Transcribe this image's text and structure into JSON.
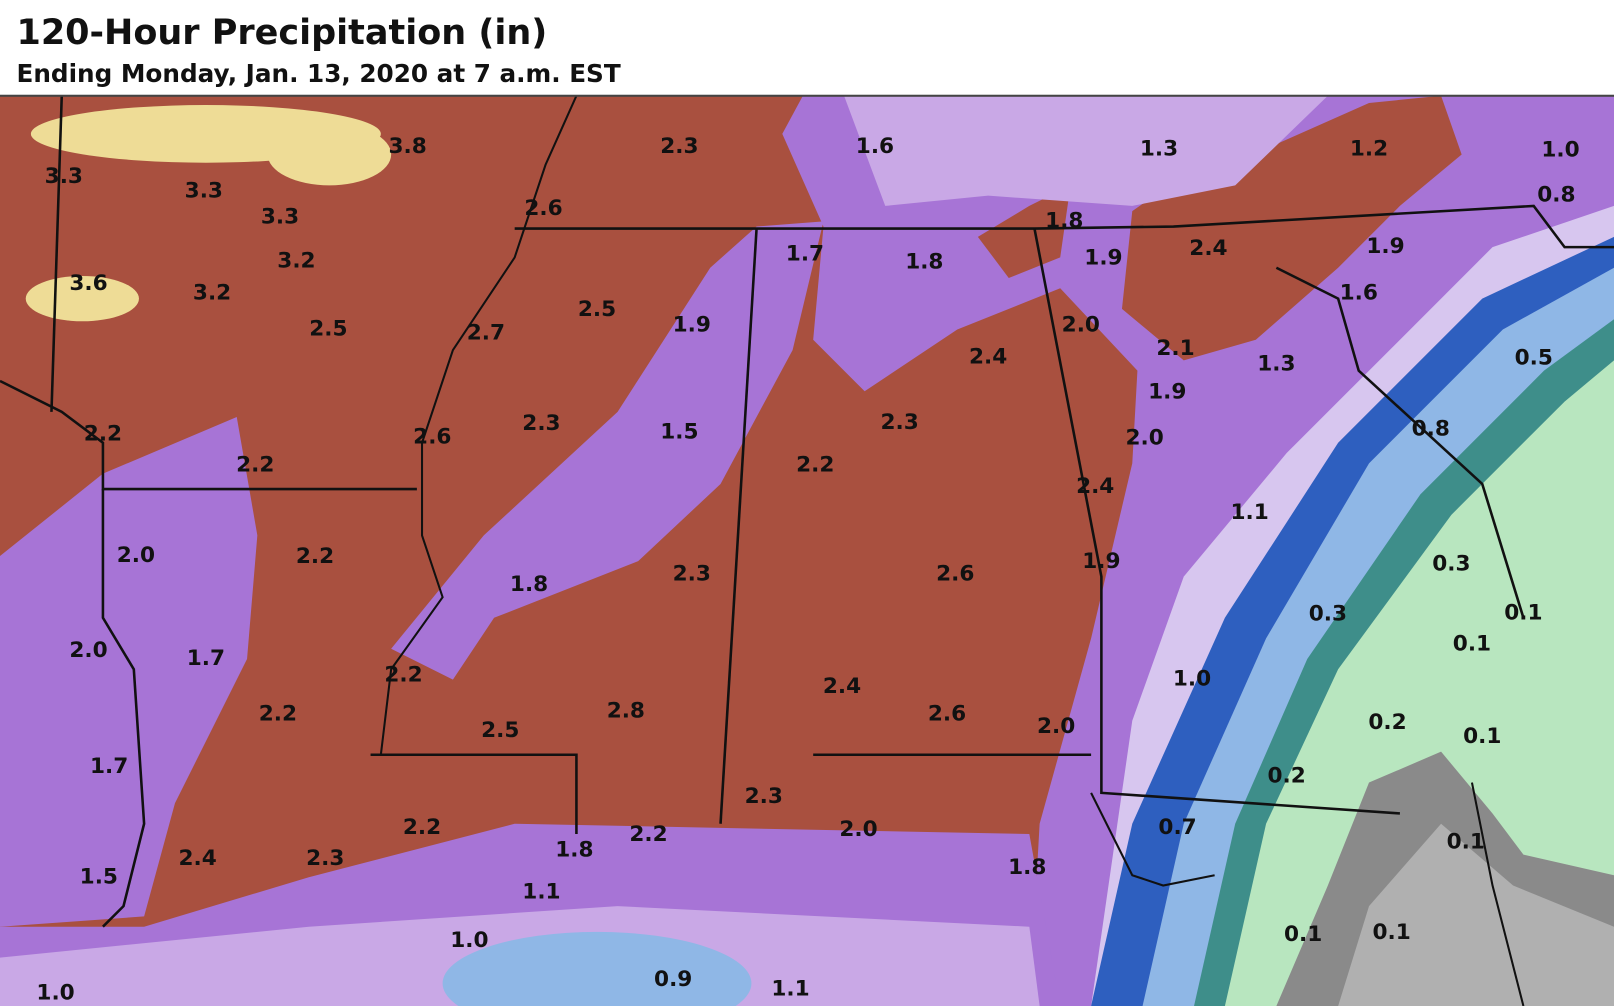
{
  "header": {
    "title": "120-Hour Precipitation (in)",
    "subtitle": "Ending Monday, Jan. 13, 2020 at 7 a.m. EST"
  },
  "map": {
    "labels": [
      "3.3",
      "3.8",
      "3.3",
      "3.3",
      "3.2",
      "3.6",
      "3.2",
      "2.5",
      "2.7",
      "2.6",
      "2.3",
      "2.5",
      "1.9",
      "2.3",
      "2.6",
      "2.2",
      "2.2",
      "1.5",
      "2.0",
      "2.2",
      "1.8",
      "2.3",
      "2.0",
      "1.7",
      "2.2",
      "2.2",
      "2.5",
      "2.8",
      "1.7",
      "2.2",
      "2.2",
      "1.8",
      "2.4",
      "2.3",
      "1.5",
      "1.1",
      "1.0",
      "0.9",
      "1.1",
      "1.0",
      "2.3",
      "2.0",
      "1.8",
      "2.4",
      "2.6",
      "2.0",
      "2.6",
      "2.2",
      "2.3",
      "2.4",
      "1.7",
      "1.8",
      "1.6",
      "1.3",
      "1.8",
      "1.9",
      "2.4",
      "2.0",
      "2.1",
      "1.9",
      "2.0",
      "2.4",
      "1.9",
      "1.3",
      "1.2",
      "1.0",
      "0.8",
      "1.9",
      "1.6",
      "0.5",
      "0.8",
      "1.1",
      "0.3",
      "0.3",
      "0.1",
      "0.1",
      "1.0",
      "0.2",
      "0.1",
      "0.2",
      "0.7",
      "0.1",
      "0.1",
      "0.1"
    ]
  }
}
